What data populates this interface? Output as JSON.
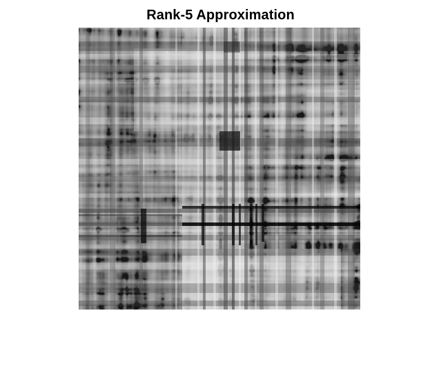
{
  "figure": {
    "title": "Rank-5 Approximation"
  },
  "image": {
    "description": "grayscale low-rank (rank-5) image approximation",
    "colormap": "gray",
    "colors": {
      "background": "#ffffff",
      "dark": "#000000",
      "light": "#ffffff"
    }
  }
}
